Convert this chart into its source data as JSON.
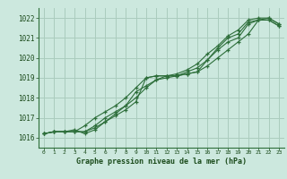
{
  "bg_color": "#cce8de",
  "grid_color": "#aaccbe",
  "line_color": "#2d6e3a",
  "title": "Graphe pression niveau de la mer (hPa)",
  "xlim": [
    -0.5,
    23.5
  ],
  "ylim": [
    1015.5,
    1022.5
  ],
  "xticks": [
    0,
    1,
    2,
    3,
    4,
    5,
    6,
    7,
    8,
    9,
    10,
    11,
    12,
    13,
    14,
    15,
    16,
    17,
    18,
    19,
    20,
    21,
    22,
    23
  ],
  "yticks": [
    1016,
    1017,
    1018,
    1019,
    1020,
    1021,
    1022
  ],
  "series": [
    [
      1016.2,
      1016.3,
      1016.3,
      1016.3,
      1016.3,
      1016.5,
      1016.8,
      1017.1,
      1017.4,
      1017.8,
      1019.0,
      1019.1,
      1019.1,
      1019.1,
      1019.2,
      1019.3,
      1019.9,
      1020.5,
      1021.0,
      1021.2,
      1021.8,
      1021.9,
      1021.9,
      1021.6
    ],
    [
      1016.2,
      1016.3,
      1016.3,
      1016.4,
      1016.2,
      1016.4,
      1016.8,
      1017.2,
      1017.6,
      1018.3,
      1018.6,
      1018.9,
      1019.0,
      1019.1,
      1019.3,
      1019.5,
      1019.9,
      1020.4,
      1020.8,
      1021.0,
      1021.7,
      1021.9,
      1021.9,
      1021.6
    ],
    [
      1016.2,
      1016.3,
      1016.3,
      1016.3,
      1016.6,
      1017.0,
      1017.3,
      1017.6,
      1018.0,
      1018.5,
      1019.0,
      1019.1,
      1019.1,
      1019.2,
      1019.4,
      1019.7,
      1020.2,
      1020.6,
      1021.1,
      1021.4,
      1021.9,
      1022.0,
      1022.0,
      1021.7
    ],
    [
      1016.2,
      1016.3,
      1016.3,
      1016.3,
      1016.3,
      1016.6,
      1017.0,
      1017.3,
      1017.6,
      1018.0,
      1018.5,
      1018.9,
      1019.1,
      1019.1,
      1019.2,
      1019.3,
      1019.6,
      1020.0,
      1020.4,
      1020.8,
      1021.2,
      1021.9,
      1022.0,
      1021.7
    ]
  ]
}
